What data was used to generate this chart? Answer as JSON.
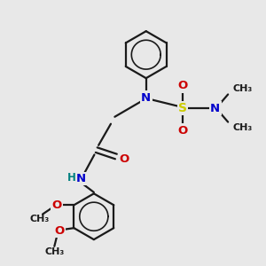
{
  "background_color": "#e8e8e8",
  "bond_color": "#1a1a1a",
  "N_color": "#0000cc",
  "O_color": "#cc0000",
  "S_color": "#cccc00",
  "H_color": "#008080",
  "figsize": [
    3.0,
    3.0
  ],
  "dpi": 100,
  "xlim": [
    0,
    10
  ],
  "ylim": [
    0,
    10
  ]
}
